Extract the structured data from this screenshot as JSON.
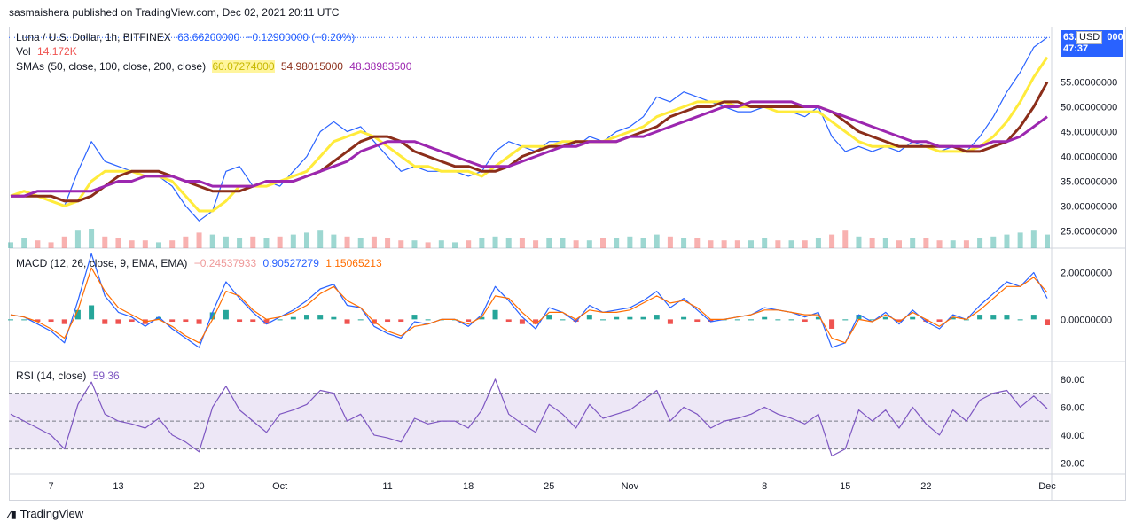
{
  "header": {
    "published_by": "sasmaishera published on TradingView.com, Dec 02, 2021 20:11 UTC"
  },
  "main_legend": {
    "symbol": "Luna / U.S. Dollar, 1h, BITFINEX",
    "price": "63.66200000",
    "change": "−0.12900000 (−0.20%)",
    "vol_label": "Vol",
    "vol_value": "14.172K",
    "sma_label": "SMAs (50, close, 100, close, 200, close)",
    "sma50": "60.07274000",
    "sma100": "54.98015000",
    "sma200": "48.38983500"
  },
  "price_tag": {
    "price": "63.6",
    "price_tail": "000",
    "countdown": "47:37",
    "currency": "USD"
  },
  "macd_legend": {
    "label": "MACD (12, 26, close, 9, EMA, EMA)",
    "hist": "−0.24537933",
    "macd": "0.90527279",
    "signal": "1.15065213"
  },
  "rsi_legend": {
    "label": "RSI (14, close)",
    "value": "59.36"
  },
  "footer": {
    "brand": "TradingView"
  },
  "colors": {
    "price_line": "#2962ff",
    "sma50": "#ffeb3b",
    "sma100": "#8b2e1a",
    "sma200": "#9c27b0",
    "macd_line": "#2962ff",
    "signal_line": "#ff6d00",
    "hist_up": "#26a69a",
    "hist_down": "#ef5350",
    "rsi_line": "#7e57c2",
    "rsi_band": "#ede7f6",
    "accent": "#2962ff"
  },
  "chart_data": [
    {
      "type": "line",
      "panel": "price",
      "ylim": [
        21.5,
        66
      ],
      "y_ticks": [
        "55.00000000",
        "50.00000000",
        "45.00000000",
        "40.00000000",
        "35.00000000",
        "30.00000000",
        "25.00000000"
      ],
      "y_tick_values": [
        55,
        50,
        45,
        40,
        35,
        30,
        25
      ],
      "x_ticks": [
        "7",
        "13",
        "20",
        "Oct",
        "11",
        "18",
        "25",
        "Nov",
        "8",
        "15",
        "22",
        "Dec"
      ],
      "x_tick_index": [
        3,
        8,
        14,
        20,
        28,
        34,
        40,
        46,
        56,
        62,
        68,
        77
      ],
      "series": [
        {
          "name": "Luna / U.S. Dollar",
          "role": "price",
          "values": [
            32,
            33,
            32,
            31,
            30,
            37,
            43,
            39,
            38,
            37,
            36,
            36,
            34,
            30,
            27,
            29,
            37,
            38,
            34,
            35,
            34,
            37,
            40,
            45,
            47,
            45,
            46,
            43,
            40,
            37,
            38,
            37,
            37,
            37,
            36,
            37,
            41,
            43,
            42,
            41,
            43,
            43,
            42,
            44,
            43,
            45,
            46,
            48,
            52,
            51,
            53,
            52,
            51,
            50,
            49,
            49,
            50,
            49,
            49,
            48,
            50,
            44,
            41,
            42,
            41,
            42,
            41,
            43,
            42,
            41,
            42,
            41,
            44,
            48,
            53,
            57,
            62,
            64
          ]
        },
        {
          "name": "SMA 50",
          "role": "sma50",
          "values": [
            32,
            33,
            32,
            31,
            30,
            31,
            35,
            37,
            37,
            37,
            36,
            36,
            35,
            32,
            29,
            29,
            31,
            34,
            34,
            34,
            35,
            36,
            37,
            40,
            43,
            44,
            45,
            44,
            42,
            40,
            38,
            38,
            37,
            37,
            37,
            36,
            38,
            40,
            42,
            42,
            42,
            43,
            43,
            43,
            43,
            44,
            45,
            46,
            48,
            49,
            50,
            51,
            51,
            51,
            50,
            50,
            50,
            49,
            49,
            49,
            49,
            47,
            45,
            43,
            42,
            42,
            42,
            42,
            42,
            41,
            41,
            41,
            42,
            44,
            47,
            51,
            56,
            60
          ]
        },
        {
          "name": "SMA 100",
          "role": "sma100",
          "values": [
            32,
            32,
            32,
            32,
            31,
            31,
            32,
            34,
            36,
            37,
            37,
            37,
            36,
            35,
            34,
            33,
            33,
            33,
            34,
            35,
            35,
            35,
            36,
            37,
            39,
            41,
            43,
            44,
            44,
            43,
            41,
            40,
            39,
            38,
            38,
            37,
            37,
            38,
            40,
            41,
            42,
            42,
            43,
            43,
            43,
            43,
            44,
            45,
            46,
            48,
            49,
            50,
            50,
            51,
            51,
            50,
            50,
            50,
            50,
            50,
            50,
            49,
            47,
            45,
            44,
            43,
            42,
            42,
            42,
            42,
            42,
            41,
            41,
            42,
            43,
            46,
            50,
            55
          ]
        },
        {
          "name": "SMA 200",
          "role": "sma200",
          "values": [
            32,
            32,
            33,
            33,
            33,
            33,
            33,
            34,
            35,
            35,
            36,
            36,
            36,
            35,
            35,
            34,
            34,
            34,
            34,
            35,
            35,
            35,
            36,
            37,
            38,
            39,
            41,
            42,
            43,
            43,
            43,
            42,
            41,
            40,
            39,
            38,
            38,
            38,
            39,
            40,
            41,
            42,
            42,
            43,
            43,
            43,
            44,
            44,
            45,
            46,
            47,
            48,
            49,
            50,
            50,
            51,
            51,
            51,
            51,
            50,
            50,
            49,
            48,
            47,
            46,
            45,
            44,
            43,
            43,
            42,
            42,
            42,
            42,
            43,
            43,
            44,
            46,
            48
          ]
        }
      ],
      "volume": [
        3,
        5,
        4,
        3,
        6,
        9,
        10,
        6,
        5,
        4,
        4,
        3,
        4,
        6,
        8,
        7,
        6,
        5,
        6,
        5,
        6,
        7,
        8,
        9,
        7,
        6,
        5,
        6,
        5,
        4,
        4,
        3,
        4,
        3,
        4,
        5,
        6,
        5,
        5,
        4,
        5,
        5,
        4,
        4,
        5,
        5,
        6,
        5,
        7,
        6,
        5,
        5,
        4,
        4,
        4,
        4,
        5,
        4,
        4,
        4,
        5,
        7,
        9,
        6,
        5,
        5,
        4,
        5,
        5,
        4,
        4,
        4,
        5,
        6,
        7,
        8,
        9,
        7
      ]
    },
    {
      "type": "line",
      "panel": "macd",
      "ylim": [
        -1.8,
        3.0
      ],
      "y_ticks": [
        "2.00000000",
        "0.00000000"
      ],
      "y_tick_values": [
        2,
        0
      ],
      "series": [
        {
          "name": "MACD",
          "role": "macd",
          "values": [
            0.2,
            0.1,
            -0.2,
            -0.5,
            -1,
            0.8,
            2.8,
            1,
            0.3,
            0.1,
            -0.3,
            0.1,
            -0.4,
            -0.8,
            -1.2,
            0.3,
            1.6,
            0.9,
            0.3,
            -0.2,
            0.1,
            0.4,
            0.8,
            1.3,
            1.5,
            0.6,
            0.5,
            -0.3,
            -0.6,
            -0.8,
            -0.1,
            -0.2,
            0,
            0,
            -0.3,
            0.2,
            1.4,
            0.8,
            0.1,
            -0.4,
            0.5,
            0.3,
            -0.1,
            0.6,
            0.3,
            0.4,
            0.5,
            0.8,
            1.2,
            0.5,
            0.9,
            0.4,
            -0.1,
            0,
            0.1,
            0.2,
            0.5,
            0.4,
            0.3,
            0.1,
            0.3,
            -1.2,
            -1,
            0.2,
            -0.1,
            0.3,
            -0.2,
            0.4,
            -0.1,
            -0.4,
            0.2,
            0,
            0.6,
            1.1,
            1.6,
            1.4,
            2,
            0.9
          ]
        },
        {
          "name": "Signal",
          "role": "signal",
          "values": [
            0.2,
            0.1,
            -0.1,
            -0.4,
            -0.8,
            0.4,
            2.2,
            1.2,
            0.5,
            0.2,
            -0.1,
            0,
            -0.3,
            -0.7,
            -1,
            0,
            1.2,
            1,
            0.4,
            0,
            0.1,
            0.3,
            0.6,
            1.1,
            1.4,
            0.8,
            0.5,
            -0.1,
            -0.5,
            -0.7,
            -0.3,
            -0.2,
            0,
            0,
            -0.2,
            0.1,
            1,
            0.9,
            0.3,
            -0.2,
            0.3,
            0.3,
            0,
            0.4,
            0.3,
            0.3,
            0.4,
            0.7,
            1,
            0.7,
            0.8,
            0.5,
            0,
            0,
            0.1,
            0.2,
            0.4,
            0.4,
            0.3,
            0.2,
            0.2,
            -0.8,
            -1,
            0,
            -0.1,
            0.2,
            -0.1,
            0.3,
            0,
            -0.3,
            0.1,
            0,
            0.4,
            0.9,
            1.4,
            1.4,
            1.8,
            1.15
          ]
        },
        {
          "name": "Histogram",
          "role": "hist",
          "values": [
            0,
            0,
            -0.1,
            -0.1,
            -0.2,
            0.4,
            0.6,
            -0.2,
            -0.2,
            -0.1,
            -0.2,
            0.1,
            -0.1,
            -0.1,
            -0.2,
            0.3,
            0.4,
            -0.1,
            -0.1,
            -0.2,
            0,
            0.1,
            0.2,
            0.2,
            0.1,
            -0.2,
            0,
            -0.2,
            -0.1,
            -0.1,
            0.2,
            0,
            0,
            0,
            -0.1,
            0.1,
            0.4,
            -0.1,
            -0.2,
            -0.2,
            0.2,
            0,
            -0.1,
            0.2,
            0,
            0.1,
            0.1,
            0.1,
            0.2,
            -0.2,
            0.1,
            -0.1,
            -0.1,
            0,
            0,
            0,
            0.1,
            0,
            0,
            -0.1,
            0.1,
            -0.4,
            0,
            0.2,
            0,
            0.1,
            -0.1,
            0.1,
            -0.1,
            -0.1,
            0.1,
            0,
            0.2,
            0.2,
            0.2,
            0,
            0.2,
            -0.25
          ]
        }
      ]
    },
    {
      "type": "line",
      "panel": "rsi",
      "ylim": [
        12,
        92
      ],
      "y_ticks": [
        "80.00",
        "60.00",
        "40.00",
        "20.00"
      ],
      "y_tick_values": [
        80,
        60,
        40,
        20
      ],
      "bands": [
        30,
        70
      ],
      "series": [
        {
          "name": "RSI",
          "role": "rsi",
          "values": [
            55,
            50,
            45,
            40,
            30,
            62,
            78,
            55,
            50,
            48,
            45,
            52,
            40,
            35,
            28,
            60,
            75,
            58,
            50,
            42,
            55,
            58,
            62,
            72,
            70,
            50,
            55,
            40,
            38,
            35,
            52,
            48,
            50,
            50,
            45,
            58,
            80,
            55,
            48,
            42,
            62,
            55,
            45,
            62,
            52,
            55,
            58,
            65,
            72,
            50,
            60,
            55,
            45,
            50,
            52,
            55,
            60,
            55,
            52,
            48,
            55,
            25,
            30,
            58,
            50,
            58,
            45,
            60,
            48,
            40,
            58,
            50,
            65,
            70,
            72,
            60,
            68,
            59
          ]
        }
      ]
    }
  ]
}
